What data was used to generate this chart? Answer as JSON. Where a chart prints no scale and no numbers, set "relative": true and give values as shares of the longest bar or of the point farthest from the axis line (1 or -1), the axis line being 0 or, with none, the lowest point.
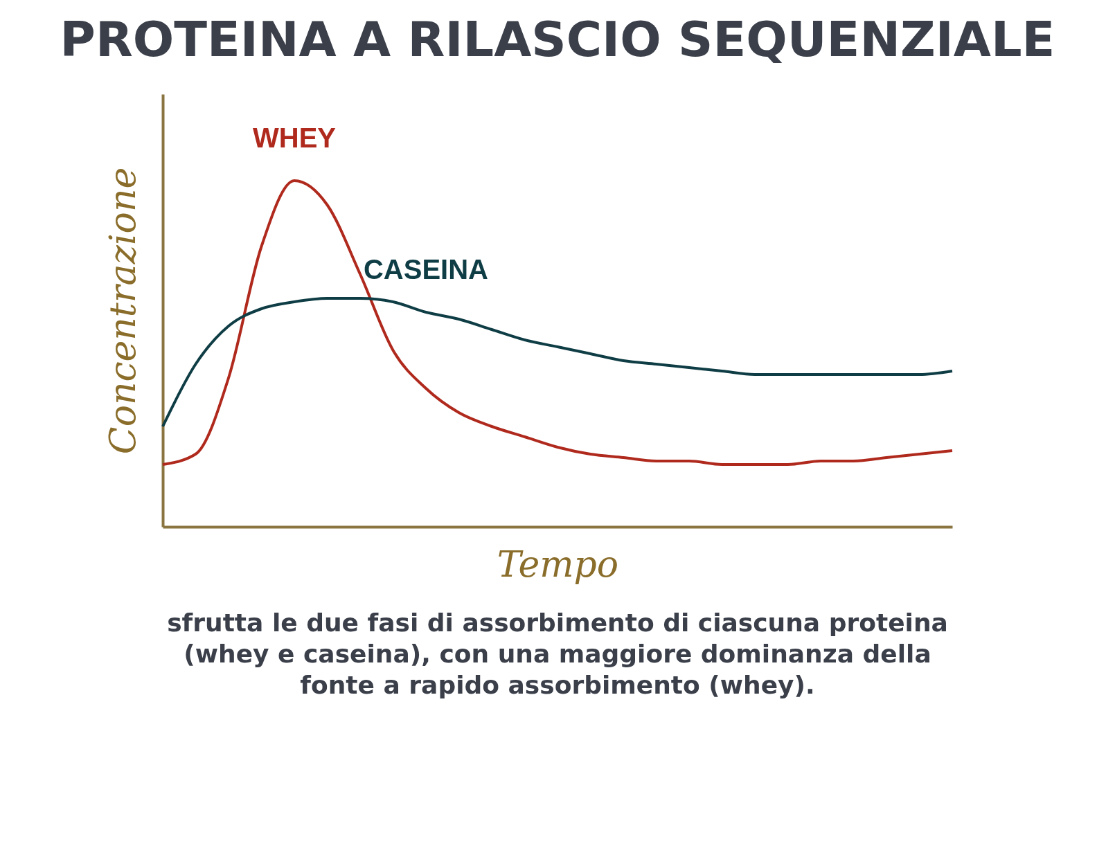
{
  "chart_data": {
    "type": "line",
    "title": "PROTEINA A RILASCIO SEQUENZIALE",
    "xlabel": "Tempo",
    "ylabel": "Concentrazione",
    "relative": true,
    "grid": false,
    "categories": [
      null,
      null,
      null,
      null,
      null,
      null,
      null,
      null,
      null,
      null,
      null,
      null,
      null,
      null,
      null,
      null,
      null,
      null,
      null,
      null,
      null,
      null,
      null,
      null,
      null
    ],
    "series": [
      {
        "name": "WHEY",
        "color": "#b0291d",
        "values": [
          0.18,
          0.21,
          0.43,
          0.81,
          1.0,
          0.93,
          0.73,
          0.51,
          0.4,
          0.33,
          0.29,
          0.26,
          0.23,
          0.21,
          0.2,
          0.19,
          0.19,
          0.18,
          0.18,
          0.18,
          0.19,
          0.19,
          0.2,
          0.21,
          0.22
        ]
      },
      {
        "name": "CASEINA",
        "color": "#0f3d45",
        "values": [
          0.29,
          0.47,
          0.58,
          0.63,
          0.65,
          0.66,
          0.66,
          0.65,
          0.62,
          0.6,
          0.57,
          0.54,
          0.52,
          0.5,
          0.48,
          0.47,
          0.46,
          0.45,
          0.44,
          0.44,
          0.44,
          0.44,
          0.44,
          0.44,
          0.45
        ]
      }
    ],
    "annotations": [
      "sfrutta le due fasi di assorbimento di ciascuna proteina (whey e caseina), con una maggiore dominanza della fonte a rapido assorbimento (whey)."
    ]
  }
}
